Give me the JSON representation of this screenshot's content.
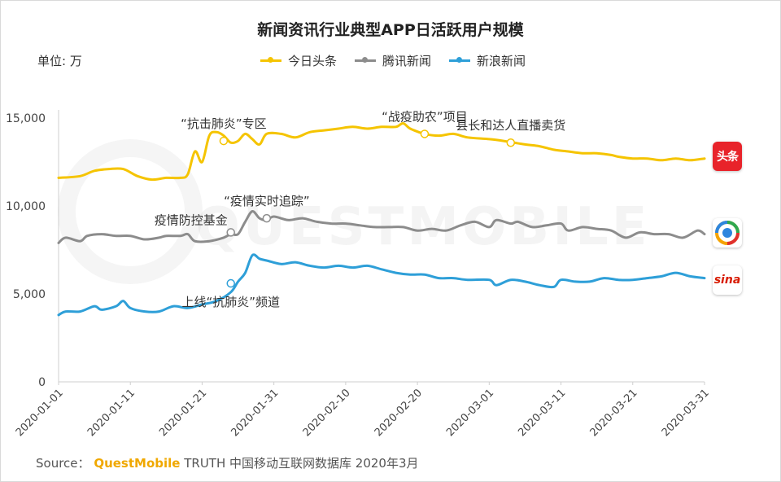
{
  "title": "新闻资讯行业典型APP日活跃用户规模",
  "unit_label": "单位: 万",
  "legend": [
    {
      "name": "今日头条",
      "color": "#F5C400"
    },
    {
      "name": "腾讯新闻",
      "color": "#8C8C8C"
    },
    {
      "name": "新浪新闻",
      "color": "#2E9FD8"
    }
  ],
  "source": {
    "prefix": "Source：",
    "brand": "QuestMobile",
    "suffix": "TRUTH 中国移动互联网数据库 2020年3月"
  },
  "watermark": "QUESTMOBILE",
  "app_icons": {
    "toutiao": {
      "text": "头条",
      "icon": "toutiao-logo-icon"
    },
    "tencent": {
      "icon": "tencent-news-logo-icon"
    },
    "sina": {
      "text": "sina",
      "icon": "sina-news-logo-icon"
    }
  },
  "chart_data": {
    "type": "line",
    "x_ticks": [
      "2020-01-01",
      "2020-01-11",
      "2020-01-21",
      "2020-01-31",
      "2020-02-10",
      "2020-02-20",
      "2020-03-01",
      "2020-03-11",
      "2020-03-21",
      "2020-03-31"
    ],
    "xlim": [
      "2020-01-01",
      "2020-03-31"
    ],
    "ylim": [
      0,
      15000
    ],
    "y_ticks": [
      0,
      5000,
      10000,
      15000
    ],
    "y_tick_labels": [
      "0",
      "5,000",
      "10,000",
      "15,000"
    ],
    "grid": false,
    "legend_position": "top",
    "series": [
      {
        "name": "今日头条",
        "points": [
          [
            "2020-01-01",
            11600
          ],
          [
            "2020-01-04",
            11700
          ],
          [
            "2020-01-06",
            12000
          ],
          [
            "2020-01-08",
            12100
          ],
          [
            "2020-01-10",
            12100
          ],
          [
            "2020-01-12",
            11700
          ],
          [
            "2020-01-14",
            11500
          ],
          [
            "2020-01-16",
            11600
          ],
          [
            "2020-01-18",
            11600
          ],
          [
            "2020-01-19",
            11800
          ],
          [
            "2020-01-20",
            13100
          ],
          [
            "2020-01-21",
            12500
          ],
          [
            "2020-01-22",
            14000
          ],
          [
            "2020-01-23",
            14200
          ],
          [
            "2020-01-24",
            14000
          ],
          [
            "2020-01-25",
            13600
          ],
          [
            "2020-01-26",
            13700
          ],
          [
            "2020-01-27",
            14100
          ],
          [
            "2020-01-28",
            13800
          ],
          [
            "2020-01-29",
            13500
          ],
          [
            "2020-01-30",
            14100
          ],
          [
            "2020-02-01",
            14100
          ],
          [
            "2020-02-03",
            13900
          ],
          [
            "2020-02-05",
            14200
          ],
          [
            "2020-02-07",
            14300
          ],
          [
            "2020-02-09",
            14400
          ],
          [
            "2020-02-11",
            14500
          ],
          [
            "2020-02-13",
            14400
          ],
          [
            "2020-02-15",
            14500
          ],
          [
            "2020-02-17",
            14500
          ],
          [
            "2020-02-18",
            14700
          ],
          [
            "2020-02-19",
            14400
          ],
          [
            "2020-02-21",
            14100
          ],
          [
            "2020-02-23",
            14000
          ],
          [
            "2020-02-25",
            14100
          ],
          [
            "2020-02-27",
            13900
          ],
          [
            "2020-03-01",
            13800
          ],
          [
            "2020-03-03",
            13700
          ],
          [
            "2020-03-06",
            13500
          ],
          [
            "2020-03-08",
            13400
          ],
          [
            "2020-03-10",
            13200
          ],
          [
            "2020-03-12",
            13100
          ],
          [
            "2020-03-14",
            13000
          ],
          [
            "2020-03-16",
            13000
          ],
          [
            "2020-03-18",
            12900
          ],
          [
            "2020-03-19",
            12800
          ],
          [
            "2020-03-21",
            12700
          ],
          [
            "2020-03-23",
            12700
          ],
          [
            "2020-03-25",
            12600
          ],
          [
            "2020-03-27",
            12700
          ],
          [
            "2020-03-29",
            12600
          ],
          [
            "2020-03-31",
            12700
          ]
        ]
      },
      {
        "name": "腾讯新闻",
        "points": [
          [
            "2020-01-01",
            7900
          ],
          [
            "2020-01-02",
            8200
          ],
          [
            "2020-01-04",
            8000
          ],
          [
            "2020-01-05",
            8300
          ],
          [
            "2020-01-07",
            8400
          ],
          [
            "2020-01-09",
            8300
          ],
          [
            "2020-01-11",
            8300
          ],
          [
            "2020-01-13",
            8100
          ],
          [
            "2020-01-15",
            8200
          ],
          [
            "2020-01-16",
            8300
          ],
          [
            "2020-01-18",
            8300
          ],
          [
            "2020-01-19",
            8400
          ],
          [
            "2020-01-20",
            8000
          ],
          [
            "2020-01-22",
            8000
          ],
          [
            "2020-01-24",
            8200
          ],
          [
            "2020-01-25",
            8400
          ],
          [
            "2020-01-26",
            8400
          ],
          [
            "2020-01-27",
            9100
          ],
          [
            "2020-01-28",
            9700
          ],
          [
            "2020-01-29",
            9300
          ],
          [
            "2020-01-30",
            9200
          ],
          [
            "2020-01-31",
            9400
          ],
          [
            "2020-02-02",
            9200
          ],
          [
            "2020-02-04",
            9300
          ],
          [
            "2020-02-06",
            9100
          ],
          [
            "2020-02-08",
            9000
          ],
          [
            "2020-02-10",
            9000
          ],
          [
            "2020-02-12",
            8900
          ],
          [
            "2020-02-14",
            8800
          ],
          [
            "2020-02-16",
            8800
          ],
          [
            "2020-02-18",
            8800
          ],
          [
            "2020-02-20",
            8600
          ],
          [
            "2020-02-22",
            8700
          ],
          [
            "2020-02-24",
            8600
          ],
          [
            "2020-02-26",
            8900
          ],
          [
            "2020-02-28",
            9100
          ],
          [
            "2020-03-01",
            8800
          ],
          [
            "2020-03-02",
            9200
          ],
          [
            "2020-03-04",
            9000
          ],
          [
            "2020-03-05",
            9100
          ],
          [
            "2020-03-07",
            8800
          ],
          [
            "2020-03-09",
            8900
          ],
          [
            "2020-03-11",
            9000
          ],
          [
            "2020-03-12",
            8600
          ],
          [
            "2020-03-14",
            8800
          ],
          [
            "2020-03-16",
            8700
          ],
          [
            "2020-03-18",
            8600
          ],
          [
            "2020-03-20",
            8200
          ],
          [
            "2020-03-22",
            8500
          ],
          [
            "2020-03-24",
            8400
          ],
          [
            "2020-03-26",
            8400
          ],
          [
            "2020-03-28",
            8200
          ],
          [
            "2020-03-30",
            8600
          ],
          [
            "2020-03-31",
            8400
          ]
        ]
      },
      {
        "name": "新浪新闻",
        "points": [
          [
            "2020-01-01",
            3800
          ],
          [
            "2020-01-02",
            4000
          ],
          [
            "2020-01-04",
            4000
          ],
          [
            "2020-01-06",
            4300
          ],
          [
            "2020-01-07",
            4100
          ],
          [
            "2020-01-09",
            4300
          ],
          [
            "2020-01-10",
            4600
          ],
          [
            "2020-01-11",
            4200
          ],
          [
            "2020-01-13",
            4000
          ],
          [
            "2020-01-15",
            4000
          ],
          [
            "2020-01-17",
            4300
          ],
          [
            "2020-01-19",
            4200
          ],
          [
            "2020-01-21",
            4400
          ],
          [
            "2020-01-23",
            4600
          ],
          [
            "2020-01-25",
            5100
          ],
          [
            "2020-01-26",
            5700
          ],
          [
            "2020-01-27",
            6200
          ],
          [
            "2020-01-28",
            7200
          ],
          [
            "2020-01-29",
            7000
          ],
          [
            "2020-01-30",
            6900
          ],
          [
            "2020-02-01",
            6700
          ],
          [
            "2020-02-03",
            6800
          ],
          [
            "2020-02-05",
            6600
          ],
          [
            "2020-02-07",
            6500
          ],
          [
            "2020-02-09",
            6600
          ],
          [
            "2020-02-11",
            6500
          ],
          [
            "2020-02-13",
            6600
          ],
          [
            "2020-02-15",
            6400
          ],
          [
            "2020-02-17",
            6200
          ],
          [
            "2020-02-19",
            6100
          ],
          [
            "2020-02-21",
            6100
          ],
          [
            "2020-02-23",
            5900
          ],
          [
            "2020-02-25",
            5900
          ],
          [
            "2020-02-27",
            5800
          ],
          [
            "2020-03-01",
            5800
          ],
          [
            "2020-03-02",
            5500
          ],
          [
            "2020-03-04",
            5800
          ],
          [
            "2020-03-06",
            5700
          ],
          [
            "2020-03-08",
            5500
          ],
          [
            "2020-03-10",
            5400
          ],
          [
            "2020-03-11",
            5800
          ],
          [
            "2020-03-13",
            5700
          ],
          [
            "2020-03-15",
            5700
          ],
          [
            "2020-03-17",
            5900
          ],
          [
            "2020-03-19",
            5800
          ],
          [
            "2020-03-21",
            5800
          ],
          [
            "2020-03-23",
            5900
          ],
          [
            "2020-03-25",
            6000
          ],
          [
            "2020-03-27",
            6200
          ],
          [
            "2020-03-29",
            6000
          ],
          [
            "2020-03-31",
            5900
          ]
        ]
      }
    ],
    "annotations": [
      {
        "text": "“抗击肺炎”专区",
        "series": "今日头条",
        "date": "2020-01-24",
        "value": 13700,
        "place": "above"
      },
      {
        "text": "“战疫助农”项目",
        "series": "今日头条",
        "date": "2020-02-21",
        "value": 14100,
        "place": "above"
      },
      {
        "text": "县长和达人直播卖货",
        "series": "今日头条",
        "date": "2020-03-04",
        "value": 13600,
        "place": "above"
      },
      {
        "text": "疫情防控基金",
        "series": "腾讯新闻",
        "date": "2020-01-25",
        "value": 8500,
        "place": "left"
      },
      {
        "text": "“疫情实时追踪”",
        "series": "腾讯新闻",
        "date": "2020-01-30",
        "value": 9300,
        "place": "above"
      },
      {
        "text": "上线“抗肺炎”频道",
        "series": "新浪新闻",
        "date": "2020-01-25",
        "value": 5600,
        "place": "below"
      }
    ]
  }
}
